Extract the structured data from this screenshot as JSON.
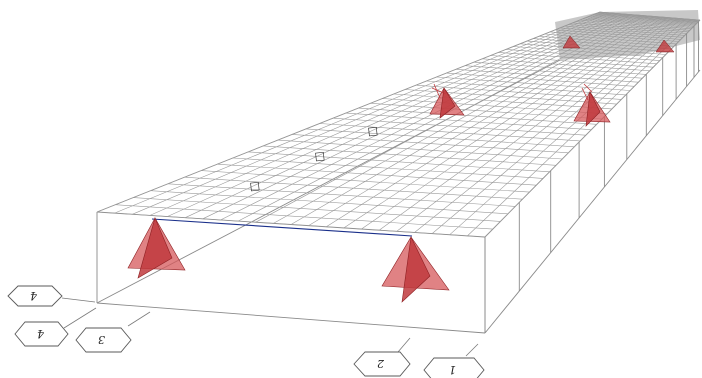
{
  "viewport": {
    "background": "#ffffff"
  },
  "axis_tags": [
    {
      "id": "tag-4-upper",
      "label": "4"
    },
    {
      "id": "tag-4-lower",
      "label": "4"
    },
    {
      "id": "tag-3",
      "label": "3"
    },
    {
      "id": "tag-2",
      "label": "2"
    },
    {
      "id": "tag-1",
      "label": "1"
    }
  ],
  "grid_marks": [
    {
      "label": "□"
    },
    {
      "label": "□"
    },
    {
      "label": "□"
    }
  ],
  "colors": {
    "grid": "#9a9a9a",
    "frame": "#8a8a8a",
    "beam": "#1a2f8a",
    "support": "#c0393d"
  },
  "icons": {
    "support": "pyramid-support-icon"
  }
}
